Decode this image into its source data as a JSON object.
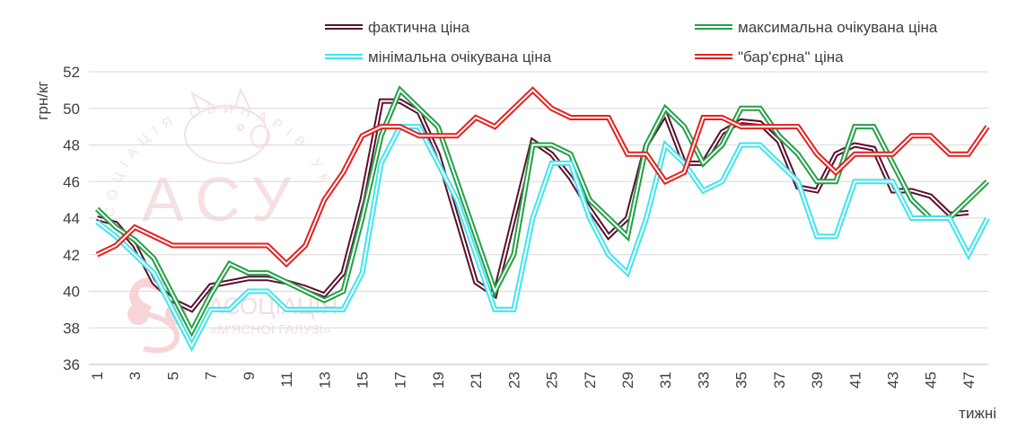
{
  "chart_data": {
    "type": "line",
    "ylabel": "грн/кг",
    "xlabel": "тижні",
    "ylim": [
      36,
      52
    ],
    "yticks": [
      36,
      38,
      40,
      42,
      44,
      46,
      48,
      50,
      52
    ],
    "x": [
      1,
      2,
      3,
      4,
      5,
      6,
      7,
      8,
      9,
      10,
      11,
      12,
      13,
      14,
      15,
      16,
      17,
      18,
      19,
      20,
      21,
      22,
      23,
      24,
      25,
      26,
      27,
      28,
      29,
      30,
      31,
      32,
      33,
      34,
      35,
      36,
      37,
      38,
      39,
      40,
      41,
      42,
      43,
      44,
      45,
      46,
      47,
      48
    ],
    "xtick_labels": [
      "1",
      "3",
      "5",
      "7",
      "9",
      "11",
      "13",
      "15",
      "17",
      "19",
      "21",
      "23",
      "25",
      "27",
      "29",
      "31",
      "33",
      "35",
      "37",
      "39",
      "41",
      "43",
      "45",
      "47"
    ],
    "grid": true,
    "legend_position": "top",
    "series": [
      {
        "name": "фактична ціна",
        "color": "#5b0f2e",
        "values": [
          44.0,
          43.7,
          42.5,
          40.5,
          39.5,
          39.0,
          40.3,
          40.5,
          40.7,
          40.7,
          40.5,
          40.2,
          39.8,
          41.0,
          45.0,
          50.4,
          50.4,
          49.8,
          47.5,
          44.0,
          40.5,
          39.8,
          44.0,
          48.2,
          47.5,
          46.2,
          44.5,
          43.0,
          44.0,
          48.0,
          49.7,
          47.0,
          47.0,
          48.7,
          49.3,
          49.2,
          48.2,
          45.7,
          45.5,
          47.5,
          48.0,
          47.8,
          45.5,
          45.5,
          45.2,
          44.2,
          44.3,
          null
        ]
      },
      {
        "name": "максимальна очікувана ціна",
        "color": "#22a045",
        "values": [
          44.5,
          43.5,
          42.8,
          41.8,
          39.8,
          37.8,
          39.8,
          41.5,
          41.0,
          41.0,
          40.5,
          40.0,
          39.5,
          40.0,
          44.0,
          48.5,
          51.0,
          50.0,
          49.0,
          46.0,
          43.0,
          40.0,
          42.0,
          48.0,
          48.0,
          47.5,
          45.0,
          44.0,
          43.0,
          48.0,
          50.0,
          49.0,
          47.0,
          48.0,
          50.0,
          50.0,
          48.5,
          47.5,
          46.0,
          46.0,
          49.0,
          49.0,
          47.0,
          45.0,
          44.0,
          44.0,
          45.0,
          46.0
        ]
      },
      {
        "name": "мінімальна очікувана ціна",
        "color": "#3ee5ee",
        "values": [
          43.8,
          43.0,
          42.0,
          41.0,
          39.0,
          37.0,
          39.0,
          39.0,
          40.0,
          40.0,
          39.0,
          39.0,
          39.0,
          39.0,
          41.0,
          47.0,
          49.0,
          49.0,
          47.0,
          45.0,
          42.0,
          39.0,
          39.0,
          44.0,
          47.0,
          47.0,
          44.0,
          42.0,
          41.0,
          44.0,
          48.0,
          47.0,
          45.5,
          46.0,
          48.0,
          48.0,
          47.0,
          46.0,
          43.0,
          43.0,
          46.0,
          46.0,
          46.0,
          44.0,
          44.0,
          44.0,
          42.0,
          44.0
        ]
      },
      {
        "name": "\"бар'єрна\" ціна",
        "color": "#e5201e",
        "values": [
          42.0,
          42.5,
          43.5,
          43.0,
          42.5,
          42.5,
          42.5,
          42.5,
          42.5,
          42.5,
          41.5,
          42.5,
          45.0,
          46.5,
          48.5,
          49.0,
          49.0,
          48.5,
          48.5,
          48.5,
          49.5,
          49.0,
          50.0,
          51.0,
          50.0,
          49.5,
          49.5,
          49.5,
          47.5,
          47.5,
          46.0,
          46.5,
          49.5,
          49.5,
          49.0,
          49.0,
          49.0,
          49.0,
          47.5,
          46.5,
          47.5,
          47.5,
          47.5,
          48.5,
          48.5,
          47.5,
          47.5,
          49.0
        ]
      }
    ]
  },
  "watermarks": {
    "asu_letters": "АСУ",
    "asu_arc": "АСОЦІАЦІЯ СВИНАРІВ УКРАЇНИ",
    "amg_text": "АСОЦІАЦІЯ",
    "amg_subtext": "«М'ЯСНОЇ ГАЛУЗІ»"
  }
}
